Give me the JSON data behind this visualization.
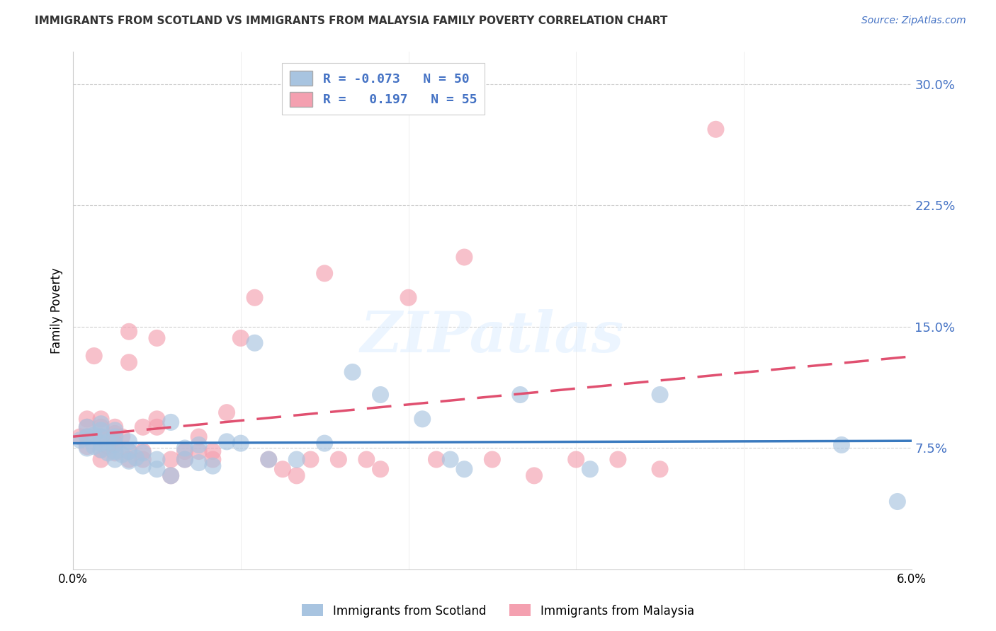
{
  "title": "IMMIGRANTS FROM SCOTLAND VS IMMIGRANTS FROM MALAYSIA FAMILY POVERTY CORRELATION CHART",
  "source": "Source: ZipAtlas.com",
  "ylabel": "Family Poverty",
  "xlim": [
    0.0,
    0.06
  ],
  "ylim": [
    0.0,
    0.32
  ],
  "yticks": [
    0.075,
    0.15,
    0.225,
    0.3
  ],
  "ytick_labels": [
    "7.5%",
    "15.0%",
    "22.5%",
    "30.0%"
  ],
  "xticks": [
    0.0,
    0.012,
    0.024,
    0.036,
    0.048,
    0.06
  ],
  "xtick_labels": [
    "0.0%",
    "",
    "",
    "",
    "",
    "6.0%"
  ],
  "scotland_color": "#a8c4e0",
  "malaysia_color": "#f4a0b0",
  "scotland_line_color": "#3a7abf",
  "malaysia_line_color": "#e05070",
  "scotland_R": -0.073,
  "scotland_N": 50,
  "malaysia_R": 0.197,
  "malaysia_N": 55,
  "legend_label_scotland": "Immigrants from Scotland",
  "legend_label_malaysia": "Immigrants from Malaysia",
  "watermark": "ZIPatlas",
  "scotland_x": [
    0.0005,
    0.001,
    0.001,
    0.001,
    0.0015,
    0.0015,
    0.002,
    0.002,
    0.002,
    0.002,
    0.002,
    0.0025,
    0.0025,
    0.003,
    0.003,
    0.003,
    0.003,
    0.003,
    0.0035,
    0.004,
    0.004,
    0.004,
    0.0045,
    0.005,
    0.005,
    0.006,
    0.006,
    0.007,
    0.007,
    0.008,
    0.008,
    0.009,
    0.009,
    0.01,
    0.011,
    0.012,
    0.013,
    0.014,
    0.016,
    0.018,
    0.02,
    0.022,
    0.025,
    0.027,
    0.028,
    0.032,
    0.037,
    0.042,
    0.055,
    0.059
  ],
  "scotland_y": [
    0.08,
    0.075,
    0.082,
    0.088,
    0.076,
    0.083,
    0.074,
    0.078,
    0.082,
    0.086,
    0.09,
    0.072,
    0.079,
    0.068,
    0.073,
    0.077,
    0.082,
    0.086,
    0.071,
    0.067,
    0.073,
    0.079,
    0.069,
    0.064,
    0.072,
    0.062,
    0.068,
    0.058,
    0.091,
    0.068,
    0.075,
    0.066,
    0.077,
    0.064,
    0.079,
    0.078,
    0.14,
    0.068,
    0.068,
    0.078,
    0.122,
    0.108,
    0.093,
    0.068,
    0.062,
    0.108,
    0.062,
    0.108,
    0.077,
    0.042
  ],
  "malaysia_x": [
    0.0005,
    0.001,
    0.001,
    0.001,
    0.001,
    0.0015,
    0.002,
    0.002,
    0.002,
    0.002,
    0.002,
    0.0025,
    0.003,
    0.003,
    0.003,
    0.003,
    0.0035,
    0.004,
    0.004,
    0.004,
    0.004,
    0.005,
    0.005,
    0.005,
    0.006,
    0.006,
    0.006,
    0.007,
    0.007,
    0.008,
    0.008,
    0.009,
    0.009,
    0.01,
    0.01,
    0.011,
    0.012,
    0.013,
    0.014,
    0.015,
    0.016,
    0.017,
    0.018,
    0.019,
    0.021,
    0.022,
    0.024,
    0.026,
    0.028,
    0.03,
    0.033,
    0.036,
    0.039,
    0.042,
    0.046
  ],
  "malaysia_y": [
    0.082,
    0.076,
    0.082,
    0.088,
    0.093,
    0.132,
    0.068,
    0.074,
    0.082,
    0.088,
    0.093,
    0.076,
    0.072,
    0.078,
    0.084,
    0.088,
    0.082,
    0.068,
    0.073,
    0.128,
    0.147,
    0.068,
    0.073,
    0.088,
    0.088,
    0.093,
    0.143,
    0.058,
    0.068,
    0.068,
    0.073,
    0.073,
    0.082,
    0.068,
    0.073,
    0.097,
    0.143,
    0.168,
    0.068,
    0.062,
    0.058,
    0.068,
    0.183,
    0.068,
    0.068,
    0.062,
    0.168,
    0.068,
    0.193,
    0.068,
    0.058,
    0.068,
    0.068,
    0.062,
    0.272
  ]
}
